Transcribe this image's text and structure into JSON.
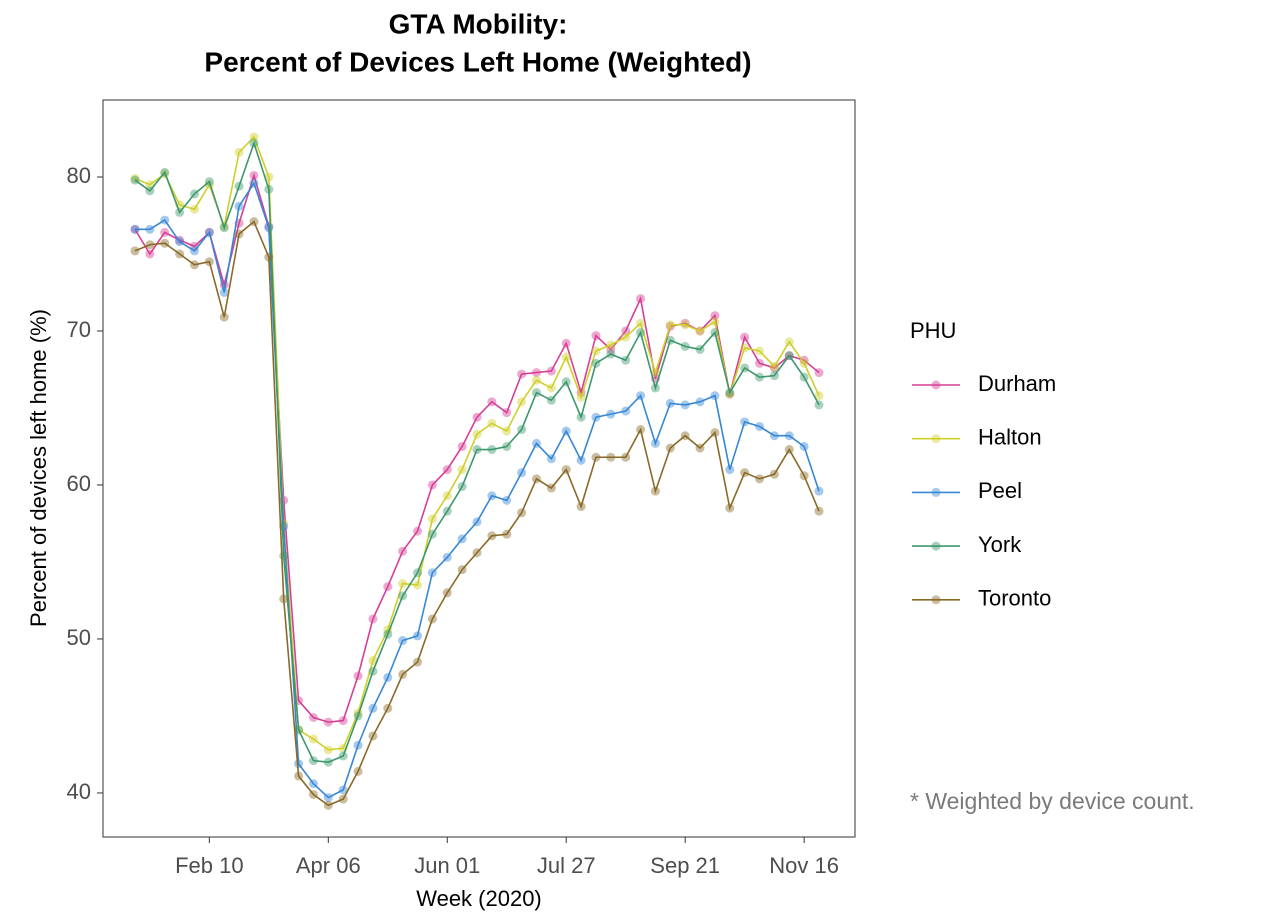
{
  "chart_data": {
    "type": "line",
    "title": [
      "GTA Mobility:",
      "Percent of Devices Left Home (Weighted)"
    ],
    "x_label": "Week (2020)",
    "y_label": "Percent of devices left home (%)",
    "legend_title": "PHU",
    "annotation": "* Weighted by device count.",
    "legend_position": "right",
    "grid": false,
    "categories": [
      null,
      null,
      null,
      null,
      null,
      "Feb 10",
      null,
      null,
      null,
      null,
      null,
      null,
      null,
      "Apr 06",
      null,
      null,
      null,
      null,
      null,
      null,
      null,
      "Jun 01",
      null,
      null,
      null,
      null,
      null,
      null,
      null,
      "Jul 27",
      null,
      null,
      null,
      null,
      null,
      null,
      null,
      "Sep 21",
      null,
      null,
      null,
      null,
      null,
      null,
      null,
      "Nov 16",
      null
    ],
    "ylim": [
      37.14,
      85
    ],
    "yticks": [
      40,
      50,
      60,
      70,
      80
    ],
    "series": [
      {
        "name": "Durham",
        "color": "#d63f97",
        "values": [
          76.6,
          75.0,
          76.4,
          75.9,
          75.5,
          76.4,
          73.0,
          77.0,
          80.1,
          76.8,
          59.0,
          46.0,
          44.9,
          44.6,
          44.7,
          47.6,
          51.3,
          53.4,
          55.7,
          57.0,
          60.0,
          61.0,
          62.5,
          64.4,
          65.4,
          64.7,
          67.2,
          67.3,
          67.4,
          69.2,
          66.0,
          69.7,
          68.8,
          70.0,
          72.1,
          66.9,
          70.3,
          70.5,
          70.0,
          71.0,
          65.9,
          69.6,
          67.9,
          67.6,
          68.4,
          68.1,
          67.3
        ]
      },
      {
        "name": "Halton",
        "color": "#cfcf2a",
        "values": [
          79.9,
          79.5,
          80.2,
          78.2,
          77.9,
          79.5,
          76.8,
          81.6,
          82.6,
          80.0,
          57.5,
          44.1,
          43.5,
          42.8,
          42.9,
          45.2,
          48.6,
          50.6,
          53.6,
          53.5,
          57.8,
          59.3,
          61.0,
          63.3,
          64.0,
          63.5,
          65.4,
          66.8,
          66.3,
          68.3,
          65.7,
          68.7,
          69.1,
          69.6,
          70.5,
          67.3,
          70.4,
          70.4,
          70.0,
          70.6,
          65.9,
          68.9,
          68.7,
          67.7,
          69.3,
          67.9,
          65.8
        ]
      },
      {
        "name": "Peel",
        "color": "#3787d4",
        "values": [
          76.6,
          76.6,
          77.2,
          75.8,
          75.2,
          76.4,
          72.5,
          78.1,
          79.6,
          76.7,
          57.3,
          41.9,
          40.6,
          39.7,
          40.2,
          43.1,
          45.5,
          47.5,
          49.9,
          50.2,
          54.3,
          55.3,
          56.5,
          57.6,
          59.3,
          59.0,
          60.8,
          62.7,
          61.7,
          63.5,
          61.6,
          64.4,
          64.6,
          64.8,
          65.8,
          62.7,
          65.3,
          65.2,
          65.4,
          65.8,
          61.0,
          64.1,
          63.8,
          63.2,
          63.2,
          62.5,
          59.6
        ]
      },
      {
        "name": "York",
        "color": "#3c986c",
        "values": [
          79.8,
          79.1,
          80.3,
          77.7,
          78.9,
          79.7,
          76.7,
          79.4,
          82.2,
          79.2,
          55.4,
          44.1,
          42.1,
          42.0,
          42.4,
          45.0,
          47.9,
          50.3,
          52.8,
          54.3,
          56.8,
          58.3,
          59.9,
          62.3,
          62.3,
          62.5,
          63.6,
          66.0,
          65.5,
          66.7,
          64.4,
          67.9,
          68.5,
          68.1,
          69.9,
          66.3,
          69.4,
          69.0,
          68.8,
          69.9,
          66.0,
          67.6,
          67.0,
          67.1,
          68.4,
          67.0,
          65.2
        ]
      },
      {
        "name": "Toronto",
        "color": "#8a6a28",
        "values": [
          75.2,
          75.6,
          75.7,
          75.0,
          74.3,
          74.5,
          70.9,
          76.3,
          77.1,
          74.8,
          52.6,
          41.1,
          39.9,
          39.2,
          39.6,
          41.4,
          43.7,
          45.5,
          47.7,
          48.5,
          51.3,
          53.0,
          54.5,
          55.6,
          56.7,
          56.8,
          58.2,
          60.4,
          59.8,
          61.0,
          58.6,
          61.8,
          61.8,
          61.8,
          63.6,
          59.6,
          62.4,
          63.2,
          62.4,
          63.4,
          58.5,
          60.8,
          60.4,
          60.7,
          62.3,
          60.6,
          58.3
        ]
      }
    ]
  }
}
